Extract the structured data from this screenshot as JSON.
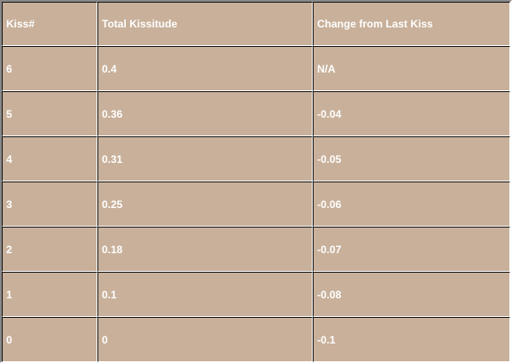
{
  "table": {
    "headers": [
      "Kiss#",
      "Total Kissitude",
      "Change from Last Kiss"
    ],
    "rows": [
      [
        "6",
        "0.4",
        "N/A"
      ],
      [
        "5",
        "0.36",
        "-0.04"
      ],
      [
        "4",
        "0.31",
        "-0.05"
      ],
      [
        "3",
        "0.25",
        "-0.06"
      ],
      [
        "2",
        "0.18",
        "-0.07"
      ],
      [
        "1",
        "0.1",
        "-0.08"
      ],
      [
        "0",
        "0",
        "-0.1"
      ]
    ]
  },
  "colors": {
    "background": "#c8b09a",
    "text": "#ffffff",
    "border_dark": "#111111",
    "border_light": "#ffffff"
  }
}
